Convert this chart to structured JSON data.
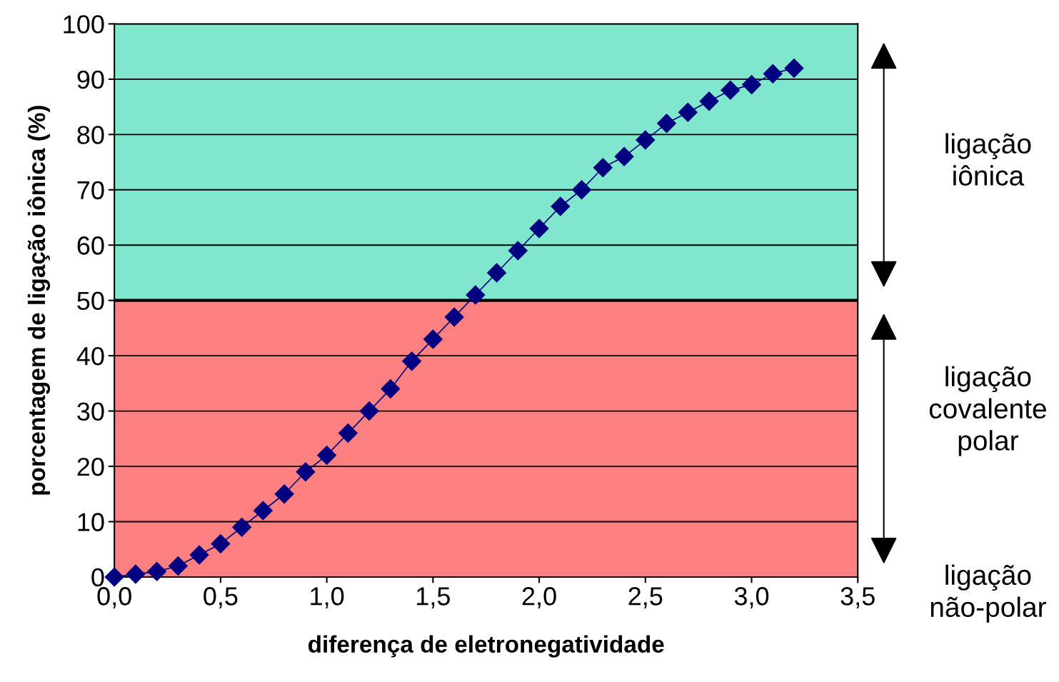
{
  "chart_data": {
    "type": "line",
    "xlabel": "diferença de eletronegatividade",
    "ylabel": "porcentagem de ligação iônica (%)",
    "x": [
      0,
      0.1,
      0.2,
      0.3,
      0.4,
      0.5,
      0.6,
      0.7,
      0.8,
      0.9,
      1.0,
      1.1,
      1.2,
      1.3,
      1.4,
      1.5,
      1.6,
      1.7,
      1.8,
      1.9,
      2.0,
      2.1,
      2.2,
      2.3,
      2.4,
      2.5,
      2.6,
      2.7,
      2.8,
      2.9,
      3.0,
      3.1,
      3.2
    ],
    "series": [
      {
        "color": "#000080",
        "values": [
          0,
          0.5,
          1,
          2,
          4,
          6,
          9,
          12,
          15,
          19,
          22,
          26,
          30,
          34,
          39,
          43,
          47,
          51,
          55,
          59,
          63,
          67,
          70,
          74,
          76,
          79,
          82,
          84,
          86,
          88,
          89,
          91,
          92
        ]
      }
    ],
    "marker": "diamond",
    "line_style": "solid",
    "xlim": [
      0,
      3.5
    ],
    "ylim": [
      0,
      100
    ],
    "xticks": [
      {
        "value": 0,
        "label": "0,0"
      },
      {
        "value": 0.5,
        "label": "0,5"
      },
      {
        "value": 1,
        "label": "1,0"
      },
      {
        "value": 1.5,
        "label": "1,5"
      },
      {
        "value": 2,
        "label": "2,0"
      },
      {
        "value": 2.5,
        "label": "2,5"
      },
      {
        "value": 3,
        "label": "3,0"
      },
      {
        "value": 3.5,
        "label": "3,5"
      }
    ],
    "yticks": [
      0,
      10,
      20,
      30,
      40,
      50,
      60,
      70,
      80,
      90,
      100
    ],
    "grid": "y",
    "bands": [
      {
        "axis": "y",
        "from": 0,
        "to": 50,
        "color": "#ff8080"
      },
      {
        "axis": "y",
        "from": 50,
        "to": 100,
        "color": "#80e6cc"
      }
    ],
    "ref_lines": [
      {
        "axis": "y",
        "value": 50,
        "color": "#000000",
        "line_style": "solid"
      }
    ],
    "annotations": [
      "ligação\niônica",
      "ligação\ncovalente\npolar",
      "ligação\nnão-polar"
    ]
  }
}
